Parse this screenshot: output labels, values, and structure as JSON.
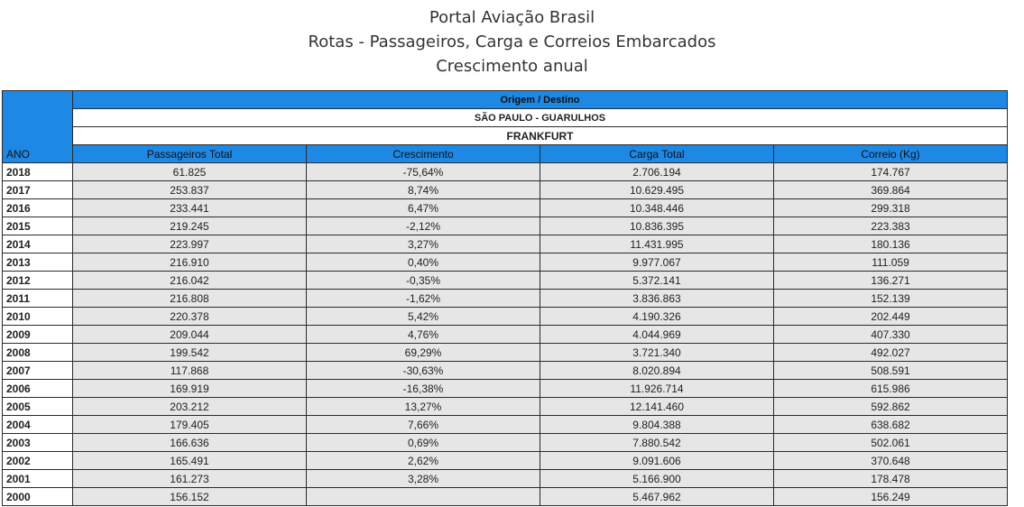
{
  "title": {
    "line1": "Portal Aviação Brasil",
    "line2": "Rotas - Passageiros, Carga e Correios Embarcados",
    "line3": "Crescimento anual"
  },
  "header": {
    "group_label": "Origem / Destino",
    "route": "SÃO PAULO - GUARULHOS",
    "destination": "FRANKFURT",
    "year_label": "ANO",
    "columns": [
      "Passageiros Total",
      "Crescimento",
      "Carga Total",
      "Correio (Kg)"
    ]
  },
  "colors": {
    "header_blue": "#1e88e5",
    "cell_gray": "#e6e6e6"
  },
  "rows": [
    {
      "year": "2018",
      "passengers": "61.825",
      "growth": "-75,64%",
      "cargo": "2.706.194",
      "mail": "174.767"
    },
    {
      "year": "2017",
      "passengers": "253.837",
      "growth": "8,74%",
      "cargo": "10.629.495",
      "mail": "369.864"
    },
    {
      "year": "2016",
      "passengers": "233.441",
      "growth": "6,47%",
      "cargo": "10.348.446",
      "mail": "299.318"
    },
    {
      "year": "2015",
      "passengers": "219.245",
      "growth": "-2,12%",
      "cargo": "10.836.395",
      "mail": "223.383"
    },
    {
      "year": "2014",
      "passengers": "223.997",
      "growth": "3,27%",
      "cargo": "11.431.995",
      "mail": "180.136"
    },
    {
      "year": "2013",
      "passengers": "216.910",
      "growth": "0,40%",
      "cargo": "9.977.067",
      "mail": "111.059"
    },
    {
      "year": "2012",
      "passengers": "216.042",
      "growth": "-0,35%",
      "cargo": "5.372.141",
      "mail": "136.271"
    },
    {
      "year": "2011",
      "passengers": "216.808",
      "growth": "-1,62%",
      "cargo": "3.836.863",
      "mail": "152.139"
    },
    {
      "year": "2010",
      "passengers": "220.378",
      "growth": "5,42%",
      "cargo": "4.190.326",
      "mail": "202.449"
    },
    {
      "year": "2009",
      "passengers": "209.044",
      "growth": "4,76%",
      "cargo": "4.044.969",
      "mail": "407.330"
    },
    {
      "year": "2008",
      "passengers": "199.542",
      "growth": "69,29%",
      "cargo": "3.721.340",
      "mail": "492.027"
    },
    {
      "year": "2007",
      "passengers": "117.868",
      "growth": "-30,63%",
      "cargo": "8.020.894",
      "mail": "508.591"
    },
    {
      "year": "2006",
      "passengers": "169.919",
      "growth": "-16,38%",
      "cargo": "11.926.714",
      "mail": "615.986"
    },
    {
      "year": "2005",
      "passengers": "203.212",
      "growth": "13,27%",
      "cargo": "12.141.460",
      "mail": "592.862"
    },
    {
      "year": "2004",
      "passengers": "179.405",
      "growth": "7,66%",
      "cargo": "9.804.388",
      "mail": "638.682"
    },
    {
      "year": "2003",
      "passengers": "166.636",
      "growth": "0,69%",
      "cargo": "7.880.542",
      "mail": "502.061"
    },
    {
      "year": "2002",
      "passengers": "165.491",
      "growth": "2,62%",
      "cargo": "9.091.606",
      "mail": "370.648"
    },
    {
      "year": "2001",
      "passengers": "161.273",
      "growth": "3,28%",
      "cargo": "5.166.900",
      "mail": "178.478"
    },
    {
      "year": "2000",
      "passengers": "156.152",
      "growth": "",
      "cargo": "5.467.962",
      "mail": "156.249"
    }
  ]
}
